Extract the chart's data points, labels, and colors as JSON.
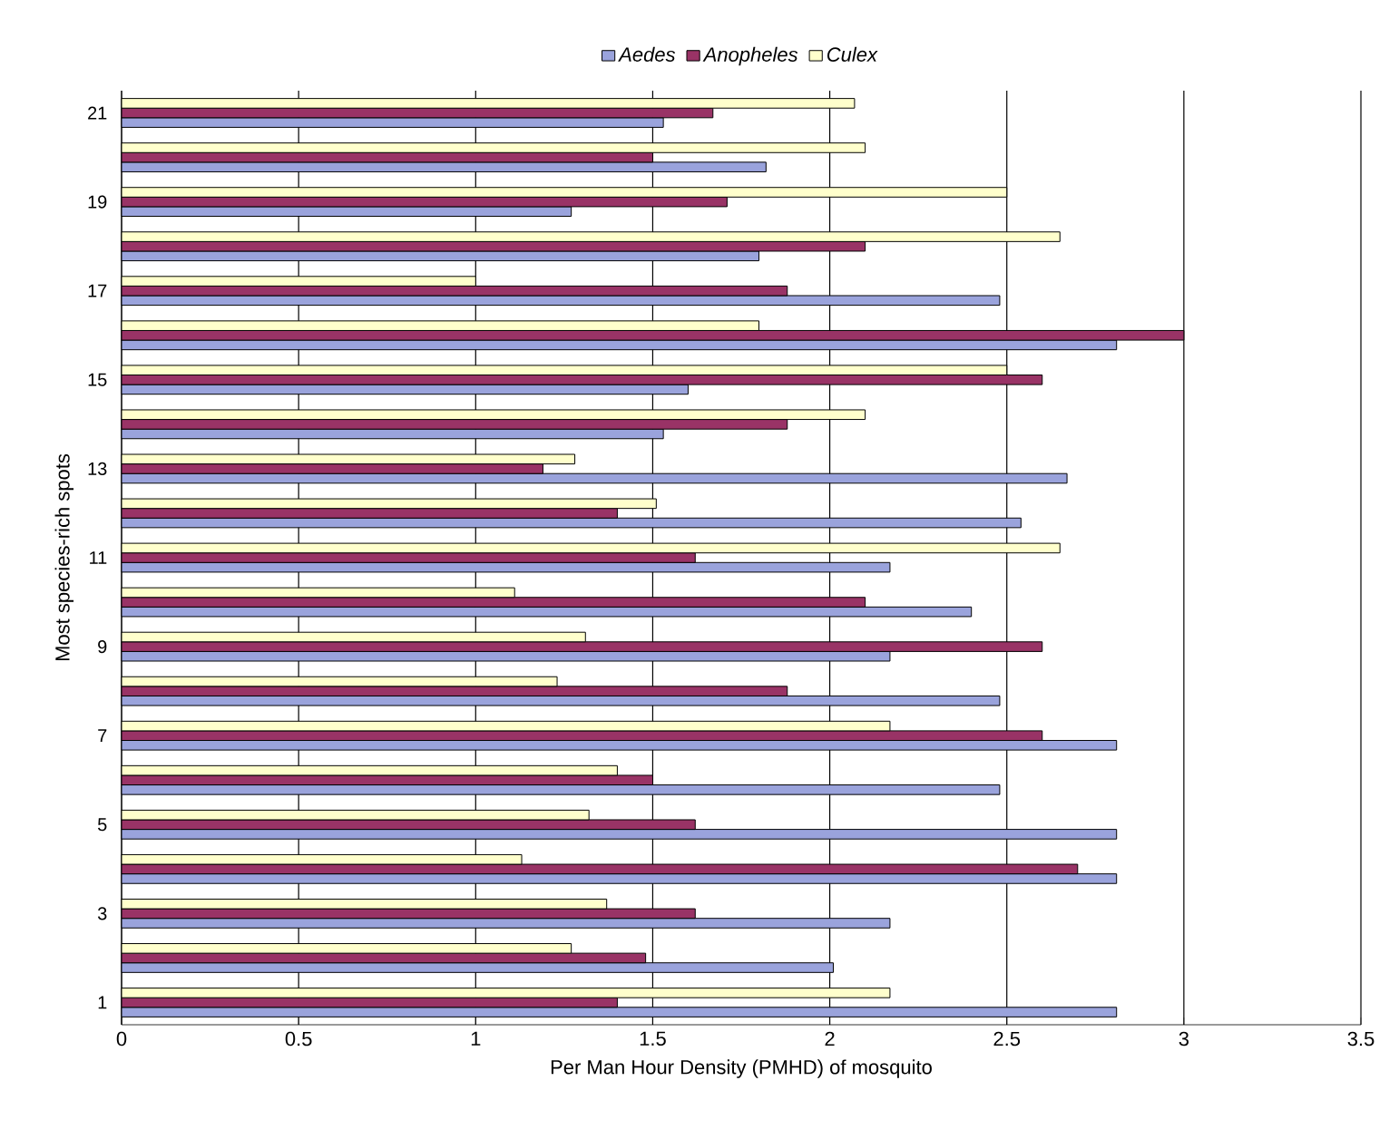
{
  "chart_data": {
    "type": "bar",
    "orientation": "horizontal",
    "xlabel": "Per Man Hour Density (PMHD) of mosquito",
    "ylabel": "Most species-rich spots",
    "categories": [
      "21",
      null,
      "19",
      null,
      "17",
      null,
      "15",
      null,
      "13",
      null,
      "11",
      null,
      "9",
      null,
      "7",
      null,
      "5",
      null,
      "3",
      null,
      "1"
    ],
    "series": [
      {
        "name": "Aedes",
        "color": "#9aa3dc",
        "values": [
          1.53,
          1.82,
          1.27,
          1.8,
          2.48,
          2.81,
          1.6,
          1.53,
          2.67,
          2.54,
          2.17,
          2.4,
          2.17,
          2.48,
          2.81,
          2.48,
          2.81,
          2.81,
          2.17,
          2.01,
          2.81
        ]
      },
      {
        "name": "Anopheles",
        "color": "#993366",
        "values": [
          1.67,
          1.5,
          1.71,
          2.1,
          1.88,
          3.0,
          2.6,
          1.88,
          1.19,
          1.4,
          1.62,
          2.1,
          2.6,
          1.88,
          2.6,
          1.5,
          1.62,
          2.7,
          1.62,
          1.48,
          1.4
        ]
      },
      {
        "name": "Culex",
        "color": "#ffffcc",
        "values": [
          2.07,
          2.1,
          2.5,
          2.65,
          1.0,
          1.8,
          2.5,
          2.1,
          1.28,
          1.51,
          2.65,
          1.11,
          1.31,
          1.23,
          2.17,
          1.4,
          1.32,
          1.13,
          1.37,
          1.27,
          2.17
        ]
      }
    ],
    "xlim": [
      0,
      3.5
    ],
    "xticks": [
      0,
      0.5,
      1,
      1.5,
      2,
      2.5,
      3,
      3.5
    ],
    "grid": "x",
    "legend": "top"
  }
}
